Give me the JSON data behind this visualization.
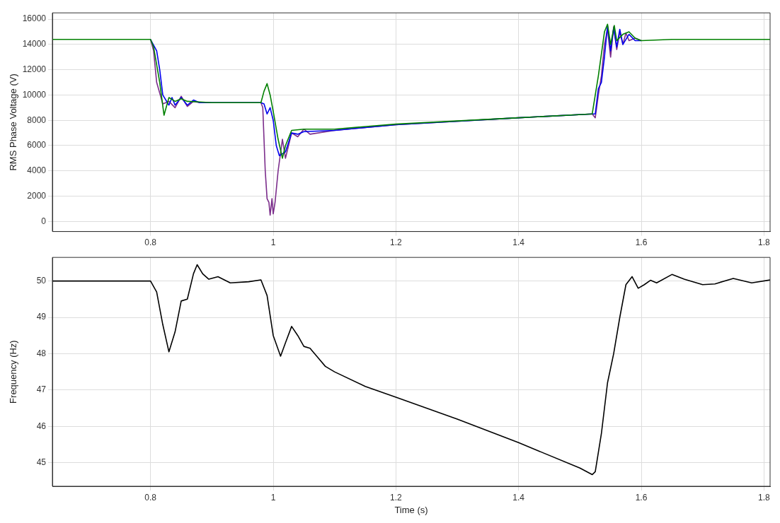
{
  "chart_data": [
    {
      "type": "line",
      "ylabel": "RMS Phase Voltage (V)",
      "xlim": [
        0.64,
        1.81
      ],
      "xticks": [
        0.8,
        1,
        1.2,
        1.4,
        1.6,
        1.8
      ],
      "ylim": [
        -800,
        16500
      ],
      "yticks": [
        0,
        2000,
        4000,
        6000,
        8000,
        10000,
        12000,
        14000,
        16000
      ],
      "grid": true,
      "series": [
        {
          "color": "#7b2d8b",
          "x": [
            0.8,
            0.805,
            0.81,
            0.82,
            0.83,
            0.84,
            0.85,
            0.86,
            0.87,
            0.88,
            0.9,
            0.98,
            0.983,
            0.987,
            0.99,
            0.993,
            0.995,
            0.998,
            1.0,
            1.003,
            1.008,
            1.015,
            1.02,
            1.03,
            1.04,
            1.05,
            1.06,
            1.1,
            1.2,
            1.4,
            1.52,
            1.525,
            1.53,
            1.535,
            1.54,
            1.545,
            1.55,
            1.555,
            1.56,
            1.565,
            1.57,
            1.575,
            1.58,
            1.59,
            1.6
          ],
          "values": [
            14400,
            13500,
            11000,
            9300,
            9500,
            9000,
            9900,
            9100,
            9500,
            9400,
            9400,
            9400,
            9000,
            4000,
            1800,
            1500,
            500,
            1800,
            600,
            1500,
            4000,
            6500,
            5000,
            7000,
            6700,
            7300,
            6900,
            7200,
            7650,
            8200,
            8500,
            8200,
            10000,
            11500,
            14000,
            15200,
            13000,
            15400,
            13600,
            15000,
            14000,
            14900,
            14300,
            14500,
            14300
          ]
        },
        {
          "color": "#0000ee",
          "x": [
            0.8,
            0.81,
            0.815,
            0.82,
            0.83,
            0.835,
            0.84,
            0.85,
            0.86,
            0.87,
            0.88,
            0.9,
            0.98,
            0.985,
            0.99,
            0.995,
            1.0,
            1.005,
            1.01,
            1.02,
            1.03,
            1.04,
            1.05,
            1.1,
            1.2,
            1.4,
            1.52,
            1.525,
            1.53,
            1.535,
            1.54,
            1.545,
            1.55,
            1.555,
            1.56,
            1.565,
            1.57,
            1.58,
            1.59,
            1.6
          ],
          "values": [
            14400,
            13500,
            12000,
            10000,
            9200,
            9800,
            9200,
            9800,
            9200,
            9600,
            9400,
            9400,
            9400,
            9300,
            8500,
            9000,
            8000,
            6000,
            5200,
            5500,
            7000,
            6900,
            7100,
            7200,
            7650,
            8200,
            8500,
            8500,
            10500,
            11000,
            13000,
            15500,
            13500,
            15300,
            13800,
            15200,
            14000,
            14800,
            14300,
            14300
          ]
        },
        {
          "color": "#008000",
          "x": [
            0.64,
            0.8,
            0.805,
            0.815,
            0.822,
            0.83,
            0.84,
            0.85,
            0.86,
            0.88,
            0.9,
            0.98,
            0.985,
            0.99,
            0.995,
            1.0,
            1.008,
            1.015,
            1.02,
            1.03,
            1.05,
            1.1,
            1.2,
            1.4,
            1.52,
            1.525,
            1.53,
            1.54,
            1.545,
            1.55,
            1.556,
            1.56,
            1.57,
            1.58,
            1.59,
            1.6,
            1.65,
            1.7,
            1.81
          ],
          "values": [
            14400,
            14400,
            13800,
            11000,
            8400,
            9800,
            9500,
            9700,
            9500,
            9450,
            9400,
            9400,
            10300,
            10900,
            10000,
            8700,
            6500,
            5000,
            6000,
            7200,
            7300,
            7300,
            7700,
            8200,
            8500,
            10000,
            11500,
            15000,
            15600,
            14000,
            15500,
            14300,
            14800,
            15000,
            14500,
            14300,
            14400,
            14400,
            14400
          ]
        }
      ]
    },
    {
      "type": "line",
      "xlabel": "Time (s)",
      "ylabel": "Frequency (Hz)",
      "xlim": [
        0.64,
        1.81
      ],
      "xticks": [
        0.8,
        1,
        1.2,
        1.4,
        1.6,
        1.8
      ],
      "ylim": [
        44.35,
        50.65
      ],
      "yticks": [
        45,
        46,
        47,
        48,
        49,
        50
      ],
      "grid": true,
      "series": [
        {
          "color": "#000000",
          "x": [
            0.64,
            0.8,
            0.81,
            0.82,
            0.83,
            0.84,
            0.85,
            0.86,
            0.87,
            0.876,
            0.885,
            0.895,
            0.91,
            0.93,
            0.96,
            0.98,
            0.99,
            1.0,
            1.012,
            1.02,
            1.03,
            1.04,
            1.05,
            1.06,
            1.07,
            1.085,
            1.1,
            1.15,
            1.2,
            1.3,
            1.4,
            1.5,
            1.52,
            1.525,
            1.535,
            1.545,
            1.555,
            1.565,
            1.575,
            1.585,
            1.595,
            1.605,
            1.615,
            1.625,
            1.65,
            1.67,
            1.7,
            1.72,
            1.75,
            1.78,
            1.81
          ],
          "values": [
            50,
            50,
            49.7,
            48.8,
            48.05,
            48.6,
            49.45,
            49.5,
            50.2,
            50.45,
            50.2,
            50.05,
            50.12,
            49.95,
            49.98,
            50.03,
            49.6,
            48.5,
            47.93,
            48.3,
            48.75,
            48.5,
            48.2,
            48.15,
            47.95,
            47.65,
            47.5,
            47.1,
            46.8,
            46.2,
            45.55,
            44.85,
            44.67,
            44.75,
            45.8,
            47.2,
            48.0,
            49.0,
            49.9,
            50.12,
            49.8,
            49.9,
            50.02,
            49.95,
            50.18,
            50.05,
            49.9,
            49.92,
            50.07,
            49.95,
            50.03
          ]
        }
      ]
    }
  ]
}
